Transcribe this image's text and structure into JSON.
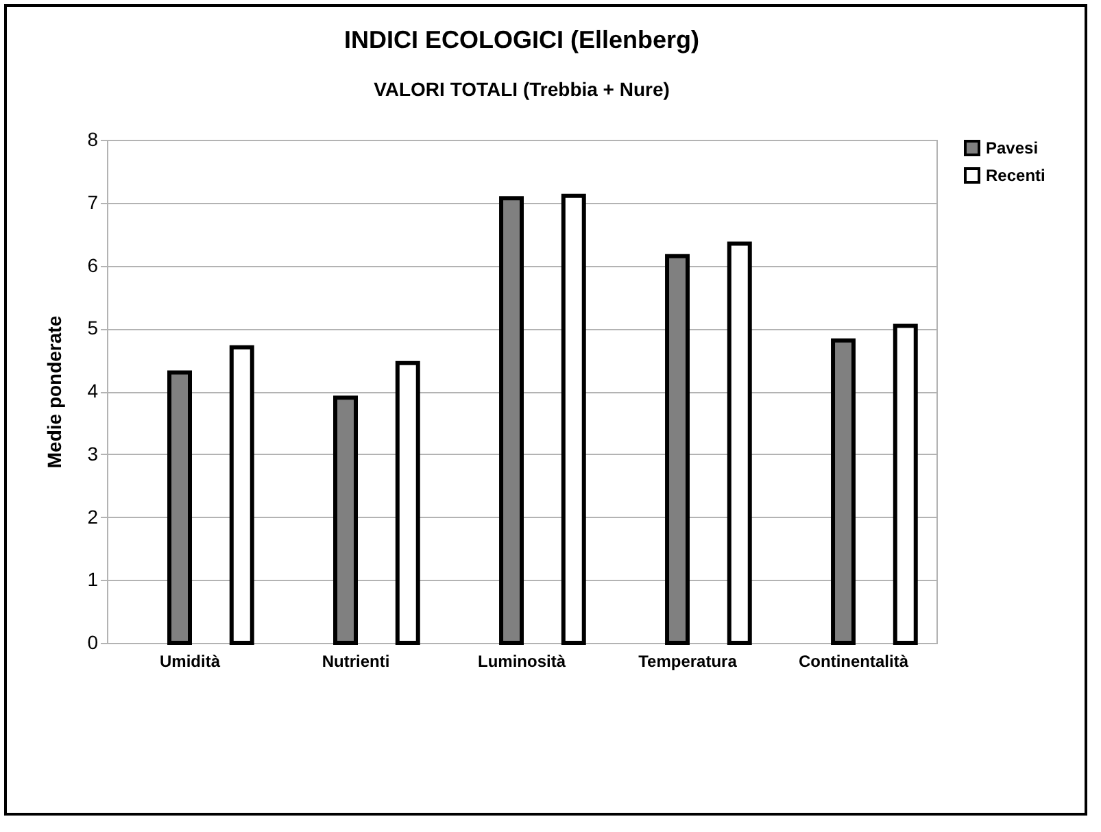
{
  "chart_data": {
    "type": "bar",
    "title": "INDICI ECOLOGICI (Ellenberg)",
    "subtitle": "VALORI TOTALI (Trebbia + Nure)",
    "ylabel": "Medie ponderate",
    "categories": [
      "Umidità",
      "Nutrienti",
      "Luminosità",
      "Temperatura",
      "Continentalità"
    ],
    "series": [
      {
        "name": "Pavesi",
        "color": "#808080",
        "values": [
          4.3,
          3.9,
          7.07,
          6.15,
          4.81
        ]
      },
      {
        "name": "Recenti",
        "color": "#ffffff",
        "values": [
          4.7,
          4.45,
          7.11,
          6.35,
          5.04
        ]
      }
    ],
    "ylim": [
      0,
      8
    ],
    "yticks": [
      0,
      1,
      2,
      3,
      4,
      5,
      6,
      7,
      8
    ],
    "grid": "y",
    "legend": "right"
  }
}
